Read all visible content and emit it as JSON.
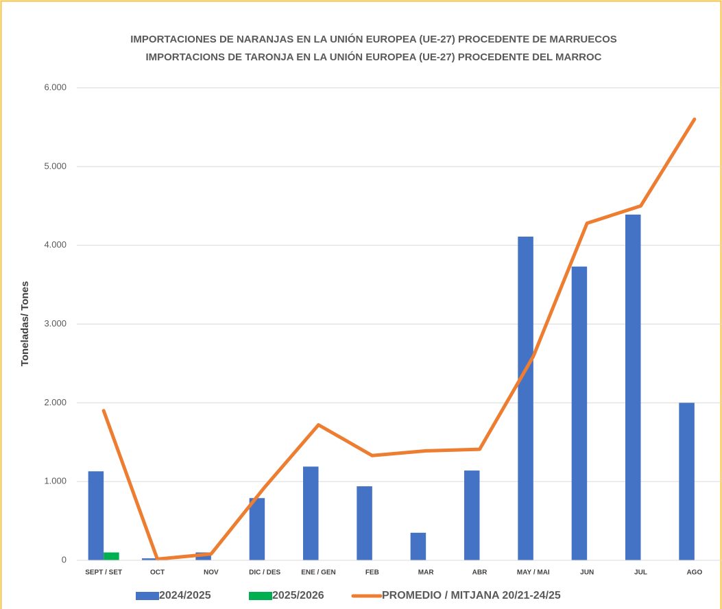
{
  "chart_data": {
    "type": "bar_line",
    "title": [
      "IMPORTACIONES DE NARANJAS EN LA UNIÓN EUROPEA (UE-27) PROCEDENTE DE MARRUECOS",
      "IMPORTACIONS DE TARONJA EN LA UNIÓN EUROPEA (UE-27) PROCEDENTE DEL MARROC"
    ],
    "ylabel": "Toneladas/ Tones",
    "categories": [
      "SEPT / SET",
      "OCT",
      "NOV",
      "DIC / DES",
      "ENE / GEN",
      "FEB",
      "MAR",
      "ABR",
      "MAY / MAI",
      "JUN",
      "JUL",
      "AGO"
    ],
    "series": [
      {
        "name": "2024/2025",
        "type": "bar",
        "color": "#4472c4",
        "values": [
          1130,
          25,
          100,
          790,
          1190,
          940,
          350,
          1140,
          4110,
          3730,
          4390,
          2000
        ]
      },
      {
        "name": "2025/2026",
        "type": "bar",
        "color": "#00b050",
        "values": [
          100,
          null,
          null,
          null,
          null,
          null,
          null,
          null,
          null,
          null,
          null,
          null
        ]
      },
      {
        "name": "PROMEDIO / MITJANA  20/21-24/25",
        "type": "line",
        "color": "#ed7d31",
        "values": [
          1900,
          15,
          80,
          930,
          1720,
          1330,
          1390,
          1410,
          2590,
          4280,
          4500,
          5600
        ]
      }
    ],
    "ylim": [
      0,
      6000
    ],
    "yticks": [
      0,
      {
        "value": 1000,
        "label": "1.000"
      },
      {
        "value": 2000,
        "label": "2.000"
      },
      {
        "value": 3000,
        "label": "3.000"
      },
      {
        "value": 4000,
        "label": "4.000"
      },
      {
        "value": 5000,
        "label": "5.000"
      },
      {
        "value": 6000,
        "label": "6.000"
      }
    ],
    "grid": true,
    "legend": "bottom"
  }
}
